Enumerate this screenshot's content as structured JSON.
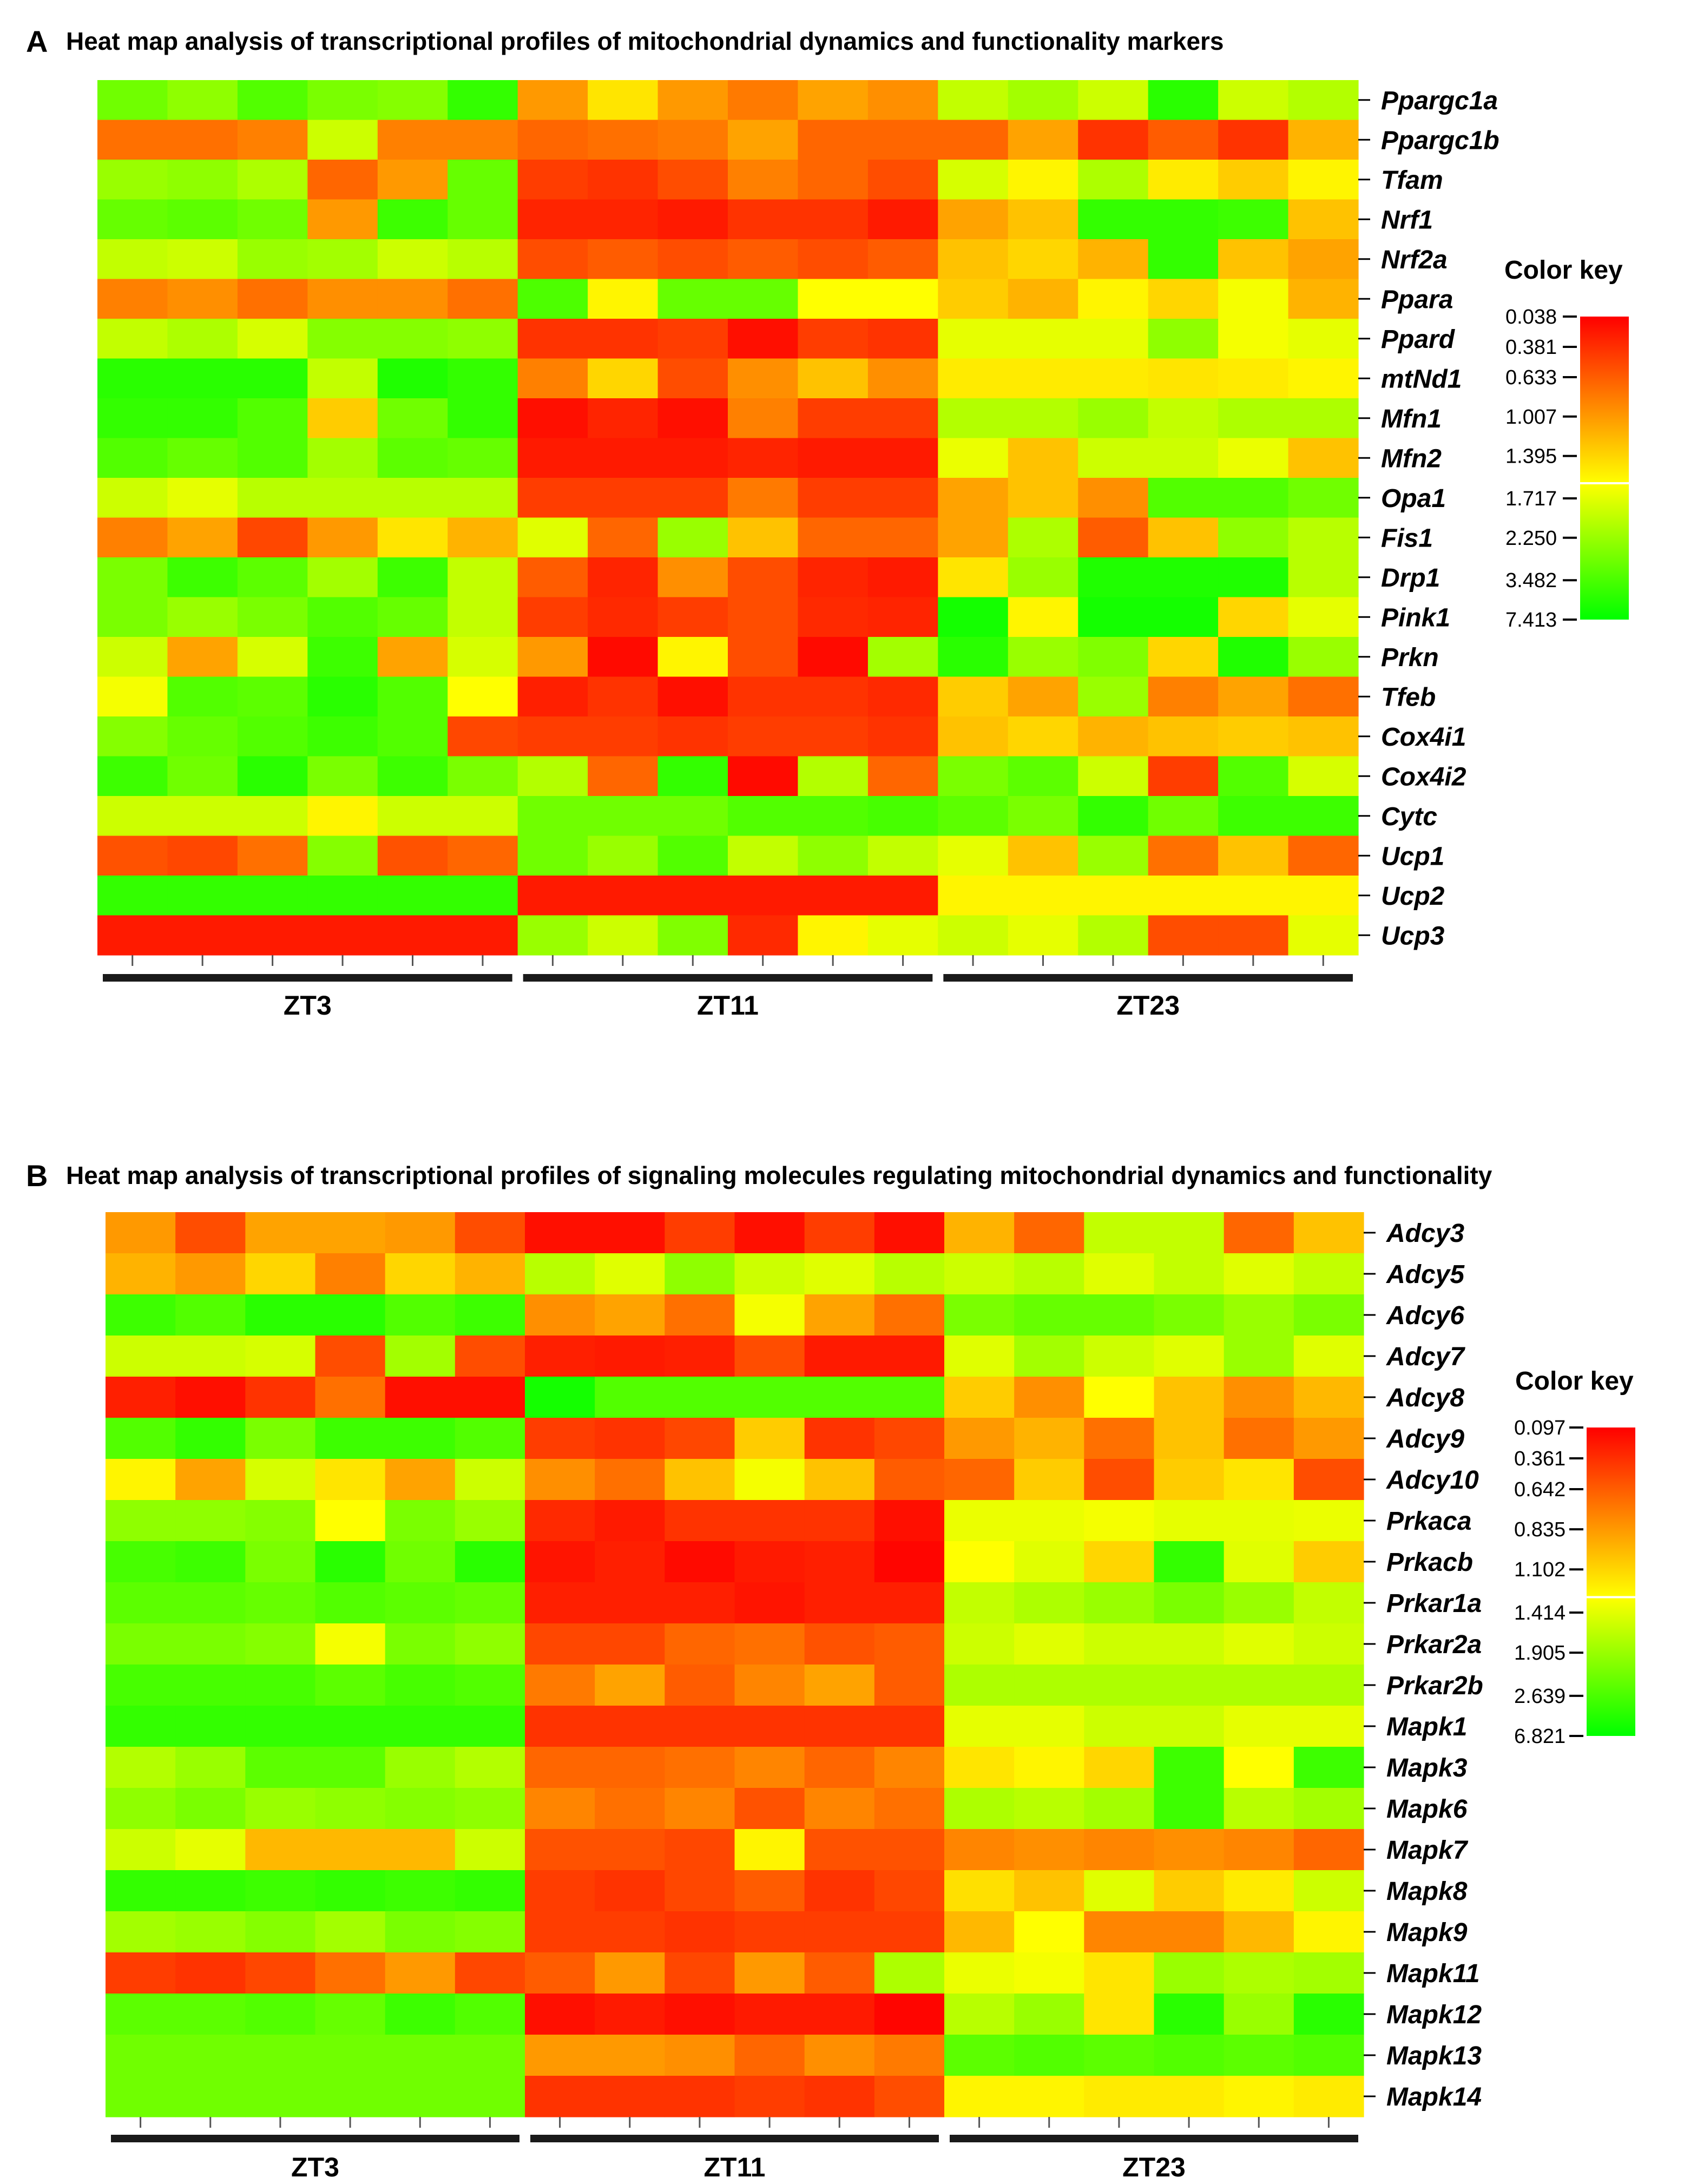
{
  "chart_data": [
    {
      "type": "heatmap",
      "panel_letter": "A",
      "title": "Heat map analysis of transcriptional profiles of mitochondrial dynamics and functionality markers",
      "rows": [
        "Ppargc1a",
        "Ppargc1b",
        "Tfam",
        "Nrf1",
        "Nrf2a",
        "Ppara",
        "Ppard",
        "mtNd1",
        "Mfn1",
        "Mfn2",
        "Opa1",
        "Fis1",
        "Drp1",
        "Pink1",
        "Prkn",
        "Tfeb",
        "Cox4i1",
        "Cox4i2",
        "Cytc",
        "Ucp1",
        "Ucp2",
        "Ucp3"
      ],
      "groups": [
        {
          "label": "ZT3",
          "n": 6
        },
        {
          "label": "ZT11",
          "n": 6
        },
        {
          "label": "ZT23",
          "n": 6
        }
      ],
      "color_key": {
        "title": "Color key",
        "ticks": [
          "0.038",
          "0.381",
          "0.633",
          "1.007",
          "1.395",
          "1.717",
          "2.250",
          "3.482",
          "7.413"
        ],
        "high_color": "#ff0000",
        "mid_color": "#ffff00",
        "low_color": "#00ff00"
      },
      "scale_note": "color scores 0 = green (low, 7.413) ... 1 = red (high, 0.038)",
      "values": [
        [
          0.22,
          0.28,
          0.16,
          0.24,
          0.26,
          0.1,
          0.7,
          0.55,
          0.7,
          0.76,
          0.68,
          0.72,
          0.38,
          0.32,
          0.4,
          0.08,
          0.4,
          0.35
        ],
        [
          0.78,
          0.78,
          0.75,
          0.4,
          0.75,
          0.75,
          0.8,
          0.78,
          0.76,
          0.68,
          0.8,
          0.8,
          0.8,
          0.68,
          0.9,
          0.82,
          0.9,
          0.65
        ],
        [
          0.3,
          0.28,
          0.34,
          0.8,
          0.7,
          0.2,
          0.88,
          0.9,
          0.85,
          0.75,
          0.8,
          0.85,
          0.42,
          0.52,
          0.34,
          0.54,
          0.6,
          0.52
        ],
        [
          0.2,
          0.18,
          0.22,
          0.7,
          0.12,
          0.2,
          0.93,
          0.93,
          0.95,
          0.9,
          0.9,
          0.95,
          0.68,
          0.62,
          0.1,
          0.1,
          0.12,
          0.62
        ],
        [
          0.38,
          0.4,
          0.3,
          0.32,
          0.4,
          0.36,
          0.85,
          0.82,
          0.85,
          0.82,
          0.85,
          0.82,
          0.62,
          0.58,
          0.65,
          0.1,
          0.62,
          0.68
        ],
        [
          0.75,
          0.72,
          0.78,
          0.72,
          0.72,
          0.78,
          0.15,
          0.52,
          0.2,
          0.2,
          0.5,
          0.5,
          0.6,
          0.65,
          0.52,
          0.58,
          0.48,
          0.65
        ],
        [
          0.38,
          0.34,
          0.42,
          0.26,
          0.26,
          0.28,
          0.9,
          0.9,
          0.88,
          0.97,
          0.88,
          0.9,
          0.45,
          0.45,
          0.45,
          0.28,
          0.48,
          0.45
        ],
        [
          0.08,
          0.08,
          0.08,
          0.38,
          0.06,
          0.1,
          0.75,
          0.58,
          0.85,
          0.72,
          0.62,
          0.72,
          0.54,
          0.54,
          0.54,
          0.55,
          0.54,
          0.52
        ],
        [
          0.1,
          0.1,
          0.16,
          0.6,
          0.22,
          0.1,
          0.97,
          0.93,
          0.97,
          0.75,
          0.88,
          0.88,
          0.35,
          0.35,
          0.3,
          0.38,
          0.34,
          0.34
        ],
        [
          0.16,
          0.2,
          0.16,
          0.32,
          0.18,
          0.2,
          0.95,
          0.95,
          0.95,
          0.93,
          0.95,
          0.95,
          0.46,
          0.62,
          0.4,
          0.4,
          0.46,
          0.62
        ],
        [
          0.4,
          0.45,
          0.36,
          0.36,
          0.36,
          0.36,
          0.88,
          0.88,
          0.88,
          0.76,
          0.88,
          0.88,
          0.68,
          0.62,
          0.72,
          0.16,
          0.16,
          0.22
        ],
        [
          0.75,
          0.68,
          0.86,
          0.7,
          0.55,
          0.65,
          0.44,
          0.8,
          0.3,
          0.62,
          0.8,
          0.8,
          0.68,
          0.34,
          0.82,
          0.62,
          0.28,
          0.36
        ],
        [
          0.24,
          0.12,
          0.18,
          0.32,
          0.12,
          0.38,
          0.82,
          0.93,
          0.72,
          0.85,
          0.93,
          0.95,
          0.55,
          0.3,
          0.06,
          0.06,
          0.06,
          0.36
        ],
        [
          0.24,
          0.3,
          0.24,
          0.16,
          0.2,
          0.38,
          0.88,
          0.92,
          0.88,
          0.85,
          0.92,
          0.93,
          0.04,
          0.52,
          0.04,
          0.04,
          0.58,
          0.45
        ],
        [
          0.4,
          0.68,
          0.42,
          0.12,
          0.68,
          0.42,
          0.7,
          0.98,
          0.52,
          0.85,
          0.98,
          0.32,
          0.08,
          0.3,
          0.25,
          0.58,
          0.06,
          0.3
        ],
        [
          0.48,
          0.16,
          0.18,
          0.08,
          0.16,
          0.5,
          0.94,
          0.9,
          0.97,
          0.9,
          0.9,
          0.92,
          0.6,
          0.68,
          0.3,
          0.75,
          0.68,
          0.78
        ],
        [
          0.26,
          0.2,
          0.16,
          0.12,
          0.16,
          0.86,
          0.88,
          0.88,
          0.9,
          0.88,
          0.88,
          0.9,
          0.62,
          0.58,
          0.65,
          0.62,
          0.6,
          0.62
        ],
        [
          0.12,
          0.22,
          0.08,
          0.24,
          0.12,
          0.24,
          0.35,
          0.8,
          0.1,
          0.98,
          0.35,
          0.8,
          0.24,
          0.18,
          0.4,
          0.88,
          0.16,
          0.42
        ],
        [
          0.4,
          0.4,
          0.4,
          0.52,
          0.4,
          0.4,
          0.22,
          0.22,
          0.22,
          0.16,
          0.16,
          0.14,
          0.18,
          0.24,
          0.1,
          0.22,
          0.12,
          0.12
        ],
        [
          0.84,
          0.86,
          0.78,
          0.26,
          0.84,
          0.8,
          0.22,
          0.3,
          0.16,
          0.38,
          0.28,
          0.38,
          0.45,
          0.62,
          0.3,
          0.78,
          0.62,
          0.8
        ],
        [
          0.1,
          0.1,
          0.1,
          0.1,
          0.1,
          0.1,
          0.95,
          0.95,
          0.95,
          0.95,
          0.95,
          0.95,
          0.52,
          0.52,
          0.52,
          0.52,
          0.52,
          0.52
        ],
        [
          0.95,
          0.95,
          0.95,
          0.95,
          0.95,
          0.95,
          0.3,
          0.4,
          0.25,
          0.92,
          0.52,
          0.45,
          0.4,
          0.45,
          0.35,
          0.85,
          0.85,
          0.45
        ]
      ]
    },
    {
      "type": "heatmap",
      "panel_letter": "B",
      "title": "Heat map analysis of transcriptional profiles of signaling molecules regulating mitochondrial dynamics and functionality",
      "rows": [
        "Adcy3",
        "Adcy5",
        "Adcy6",
        "Adcy7",
        "Adcy8",
        "Adcy9",
        "Adcy10",
        "Prkaca",
        "Prkacb",
        "Prkar1a",
        "Prkar2a",
        "Prkar2b",
        "Mapk1",
        "Mapk3",
        "Mapk6",
        "Mapk7",
        "Mapk8",
        "Mapk9",
        "Mapk11",
        "Mapk12",
        "Mapk13",
        "Mapk14"
      ],
      "groups": [
        {
          "label": "ZT3",
          "n": 6
        },
        {
          "label": "ZT11",
          "n": 6
        },
        {
          "label": "ZT23",
          "n": 6
        }
      ],
      "color_key": {
        "title": "Color key",
        "ticks": [
          "0.097",
          "0.361",
          "0.642",
          "0.835",
          "1.102",
          "1.414",
          "1.905",
          "2.639",
          "6.821"
        ],
        "high_color": "#ff0000",
        "mid_color": "#ffff00",
        "low_color": "#00ff00"
      },
      "scale_note": "color scores 0 = green (low, 6.821) ... 1 = red (high, 0.097)",
      "values": [
        [
          0.7,
          0.85,
          0.68,
          0.68,
          0.7,
          0.85,
          0.97,
          0.97,
          0.88,
          0.97,
          0.88,
          0.97,
          0.65,
          0.8,
          0.38,
          0.38,
          0.8,
          0.62
        ],
        [
          0.65,
          0.7,
          0.58,
          0.75,
          0.58,
          0.65,
          0.36,
          0.44,
          0.28,
          0.4,
          0.44,
          0.36,
          0.4,
          0.36,
          0.44,
          0.38,
          0.44,
          0.38
        ],
        [
          0.12,
          0.16,
          0.08,
          0.08,
          0.16,
          0.12,
          0.72,
          0.68,
          0.78,
          0.48,
          0.68,
          0.78,
          0.24,
          0.2,
          0.2,
          0.24,
          0.3,
          0.24
        ],
        [
          0.4,
          0.4,
          0.42,
          0.85,
          0.32,
          0.85,
          0.94,
          0.95,
          0.94,
          0.85,
          0.95,
          0.95,
          0.44,
          0.32,
          0.4,
          0.44,
          0.3,
          0.44
        ],
        [
          0.94,
          0.97,
          0.9,
          0.78,
          0.97,
          0.97,
          0.04,
          0.16,
          0.16,
          0.16,
          0.16,
          0.16,
          0.6,
          0.72,
          0.5,
          0.62,
          0.72,
          0.64
        ],
        [
          0.16,
          0.1,
          0.24,
          0.12,
          0.12,
          0.16,
          0.88,
          0.9,
          0.86,
          0.6,
          0.9,
          0.86,
          0.7,
          0.65,
          0.78,
          0.62,
          0.78,
          0.7
        ],
        [
          0.52,
          0.68,
          0.42,
          0.55,
          0.68,
          0.4,
          0.72,
          0.78,
          0.62,
          0.48,
          0.62,
          0.82,
          0.8,
          0.6,
          0.85,
          0.6,
          0.55,
          0.85
        ],
        [
          0.28,
          0.28,
          0.26,
          0.5,
          0.24,
          0.3,
          0.92,
          0.95,
          0.9,
          0.9,
          0.9,
          0.97,
          0.46,
          0.46,
          0.48,
          0.45,
          0.45,
          0.46
        ],
        [
          0.14,
          0.12,
          0.24,
          0.08,
          0.22,
          0.08,
          0.96,
          0.94,
          0.98,
          0.95,
          0.94,
          0.99,
          0.5,
          0.44,
          0.58,
          0.1,
          0.44,
          0.6
        ],
        [
          0.18,
          0.18,
          0.2,
          0.16,
          0.18,
          0.2,
          0.94,
          0.94,
          0.94,
          0.96,
          0.94,
          0.94,
          0.38,
          0.34,
          0.3,
          0.24,
          0.3,
          0.38
        ],
        [
          0.24,
          0.24,
          0.26,
          0.48,
          0.24,
          0.28,
          0.86,
          0.86,
          0.8,
          0.78,
          0.84,
          0.82,
          0.4,
          0.44,
          0.4,
          0.4,
          0.44,
          0.4
        ],
        [
          0.14,
          0.14,
          0.14,
          0.18,
          0.14,
          0.16,
          0.76,
          0.68,
          0.82,
          0.74,
          0.68,
          0.82,
          0.34,
          0.34,
          0.34,
          0.34,
          0.34,
          0.34
        ],
        [
          0.1,
          0.1,
          0.1,
          0.1,
          0.1,
          0.1,
          0.9,
          0.9,
          0.9,
          0.9,
          0.9,
          0.9,
          0.45,
          0.45,
          0.4,
          0.4,
          0.45,
          0.45
        ],
        [
          0.35,
          0.3,
          0.18,
          0.18,
          0.3,
          0.35,
          0.8,
          0.8,
          0.78,
          0.74,
          0.8,
          0.74,
          0.55,
          0.52,
          0.58,
          0.12,
          0.5,
          0.12
        ],
        [
          0.28,
          0.24,
          0.3,
          0.28,
          0.26,
          0.28,
          0.74,
          0.78,
          0.74,
          0.84,
          0.74,
          0.78,
          0.34,
          0.36,
          0.32,
          0.12,
          0.36,
          0.32
        ],
        [
          0.4,
          0.45,
          0.64,
          0.64,
          0.64,
          0.4,
          0.84,
          0.84,
          0.86,
          0.52,
          0.84,
          0.84,
          0.74,
          0.72,
          0.74,
          0.72,
          0.74,
          0.8
        ],
        [
          0.1,
          0.1,
          0.12,
          0.1,
          0.12,
          0.1,
          0.88,
          0.9,
          0.86,
          0.82,
          0.9,
          0.86,
          0.56,
          0.62,
          0.44,
          0.6,
          0.54,
          0.4
        ],
        [
          0.32,
          0.3,
          0.26,
          0.32,
          0.24,
          0.26,
          0.88,
          0.88,
          0.9,
          0.88,
          0.88,
          0.88,
          0.64,
          0.5,
          0.74,
          0.74,
          0.64,
          0.52
        ],
        [
          0.88,
          0.9,
          0.86,
          0.78,
          0.7,
          0.86,
          0.82,
          0.7,
          0.86,
          0.7,
          0.82,
          0.34,
          0.46,
          0.48,
          0.55,
          0.3,
          0.34,
          0.32
        ],
        [
          0.18,
          0.18,
          0.16,
          0.2,
          0.12,
          0.16,
          0.97,
          0.95,
          0.97,
          0.95,
          0.95,
          0.99,
          0.36,
          0.3,
          0.55,
          0.08,
          0.3,
          0.08
        ],
        [
          0.22,
          0.22,
          0.22,
          0.22,
          0.22,
          0.22,
          0.7,
          0.7,
          0.72,
          0.8,
          0.72,
          0.76,
          0.18,
          0.16,
          0.18,
          0.16,
          0.18,
          0.16
        ],
        [
          0.22,
          0.22,
          0.22,
          0.22,
          0.22,
          0.22,
          0.9,
          0.9,
          0.9,
          0.88,
          0.9,
          0.85,
          0.52,
          0.52,
          0.54,
          0.54,
          0.52,
          0.54
        ]
      ]
    }
  ]
}
